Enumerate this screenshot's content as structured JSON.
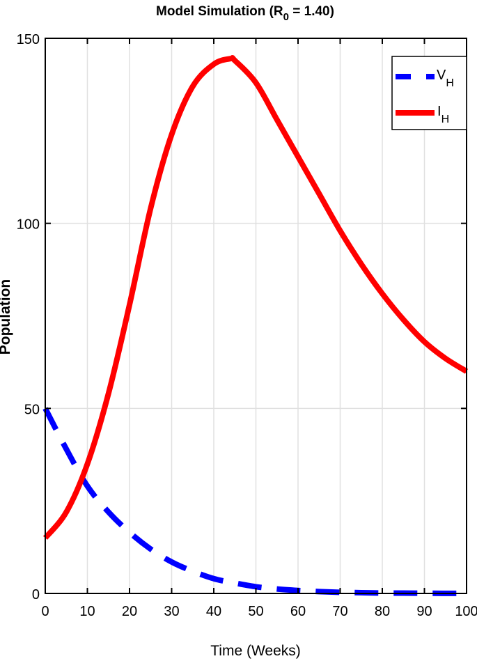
{
  "chart_data": {
    "type": "line",
    "title": "Model Simulation (R",
    "title_sub": "0",
    "title_tail": " = 1.40)",
    "title_full": "Model Simulation (R_0 = 1.40)",
    "xlabel": "Time (Weeks)",
    "ylabel": "Population",
    "xlim": [
      0,
      100
    ],
    "ylim": [
      0,
      150
    ],
    "xticks": [
      0,
      10,
      20,
      30,
      40,
      50,
      60,
      70,
      80,
      90,
      100
    ],
    "yticks": [
      0,
      50,
      100,
      150
    ],
    "grid": true,
    "legend_position": "upper right",
    "x": [
      0,
      5,
      10,
      15,
      20,
      25,
      30,
      35,
      40,
      44,
      45,
      50,
      55,
      60,
      65,
      70,
      75,
      80,
      85,
      90,
      95,
      100
    ],
    "series": [
      {
        "name": "V_H",
        "label": "V",
        "label_sub": "H",
        "color": "#0000ff",
        "style": "dashed",
        "values": [
          50,
          39,
          29,
          22,
          16.5,
          12,
          8.5,
          6,
          4,
          3,
          2.8,
          1.8,
          1.2,
          0.8,
          0.5,
          0.3,
          0.2,
          0.1,
          0.1,
          0.05,
          0.03,
          0.02
        ]
      },
      {
        "name": "I_H",
        "label": "I",
        "label_sub": "H",
        "color": "#ff0000",
        "style": "solid",
        "values": [
          15,
          22,
          35,
          54,
          78,
          104,
          124,
          137,
          143,
          144.5,
          144,
          138,
          128,
          118,
          108,
          98,
          89,
          81,
          74,
          68,
          63.5,
          60
        ]
      }
    ]
  }
}
